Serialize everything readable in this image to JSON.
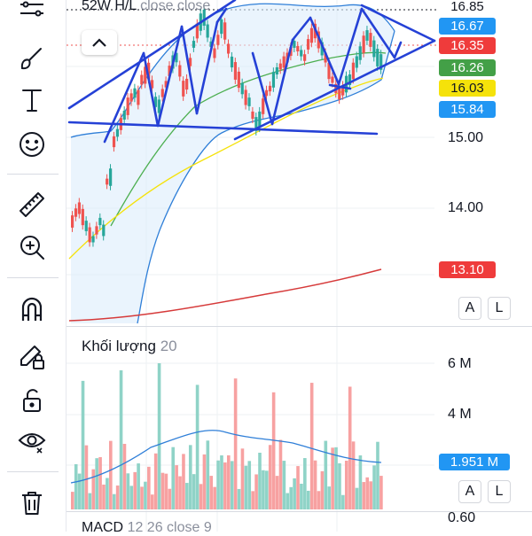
{
  "toolbar": {
    "tools": [
      {
        "name": "crosshair-tool-icon"
      },
      {
        "name": "brush-icon"
      },
      {
        "name": "text-icon"
      },
      {
        "name": "emoji-icon"
      },
      {
        "name": "ruler-icon"
      },
      {
        "name": "zoom-in-icon"
      },
      {
        "name": "magnet-icon"
      },
      {
        "name": "lock-drawings-icon"
      },
      {
        "name": "unlock-icon"
      },
      {
        "name": "eye-icon"
      },
      {
        "name": "trash-icon"
      }
    ]
  },
  "price_pane": {
    "legend": "52W H/L",
    "legend_suffix": "close close",
    "price_tags": [
      {
        "label": "16.85",
        "bg": "#ffffff",
        "fg": "#131722"
      },
      {
        "label": "16.67",
        "bg": "#2196f3",
        "fg": "#ffffff"
      },
      {
        "label": "16.35",
        "bg": "#ef3b3b",
        "fg": "#ffffff"
      },
      {
        "label": "16.26",
        "bg": "#43a047",
        "fg": "#ffffff"
      },
      {
        "label": "16.03",
        "bg": "#f5e20a",
        "fg": "#131722"
      },
      {
        "label": "15.84",
        "bg": "#2196f3",
        "fg": "#ffffff"
      }
    ],
    "axis_labels": [
      "15.00",
      "14.00"
    ],
    "ma_tag": {
      "label": "13.10",
      "bg": "#ef3b3b",
      "fg": "#ffffff"
    },
    "buttons": {
      "a": "A",
      "l": "L"
    }
  },
  "volume_pane": {
    "title": "Khối lượng",
    "period": "20",
    "axis_labels": [
      "6 M",
      "4 M"
    ],
    "volume_tag": {
      "label": "1.951 M",
      "bg": "#2196f3",
      "fg": "#ffffff"
    },
    "buttons": {
      "a": "A",
      "l": "L"
    }
  },
  "macd_pane": {
    "title": "MACD",
    "params": "12 26 close 9",
    "axis_label": "0.60"
  },
  "colors": {
    "up": "#26a69a",
    "down": "#ef5350",
    "band": "#2f7fd8",
    "drawing": "#2541d6"
  }
}
